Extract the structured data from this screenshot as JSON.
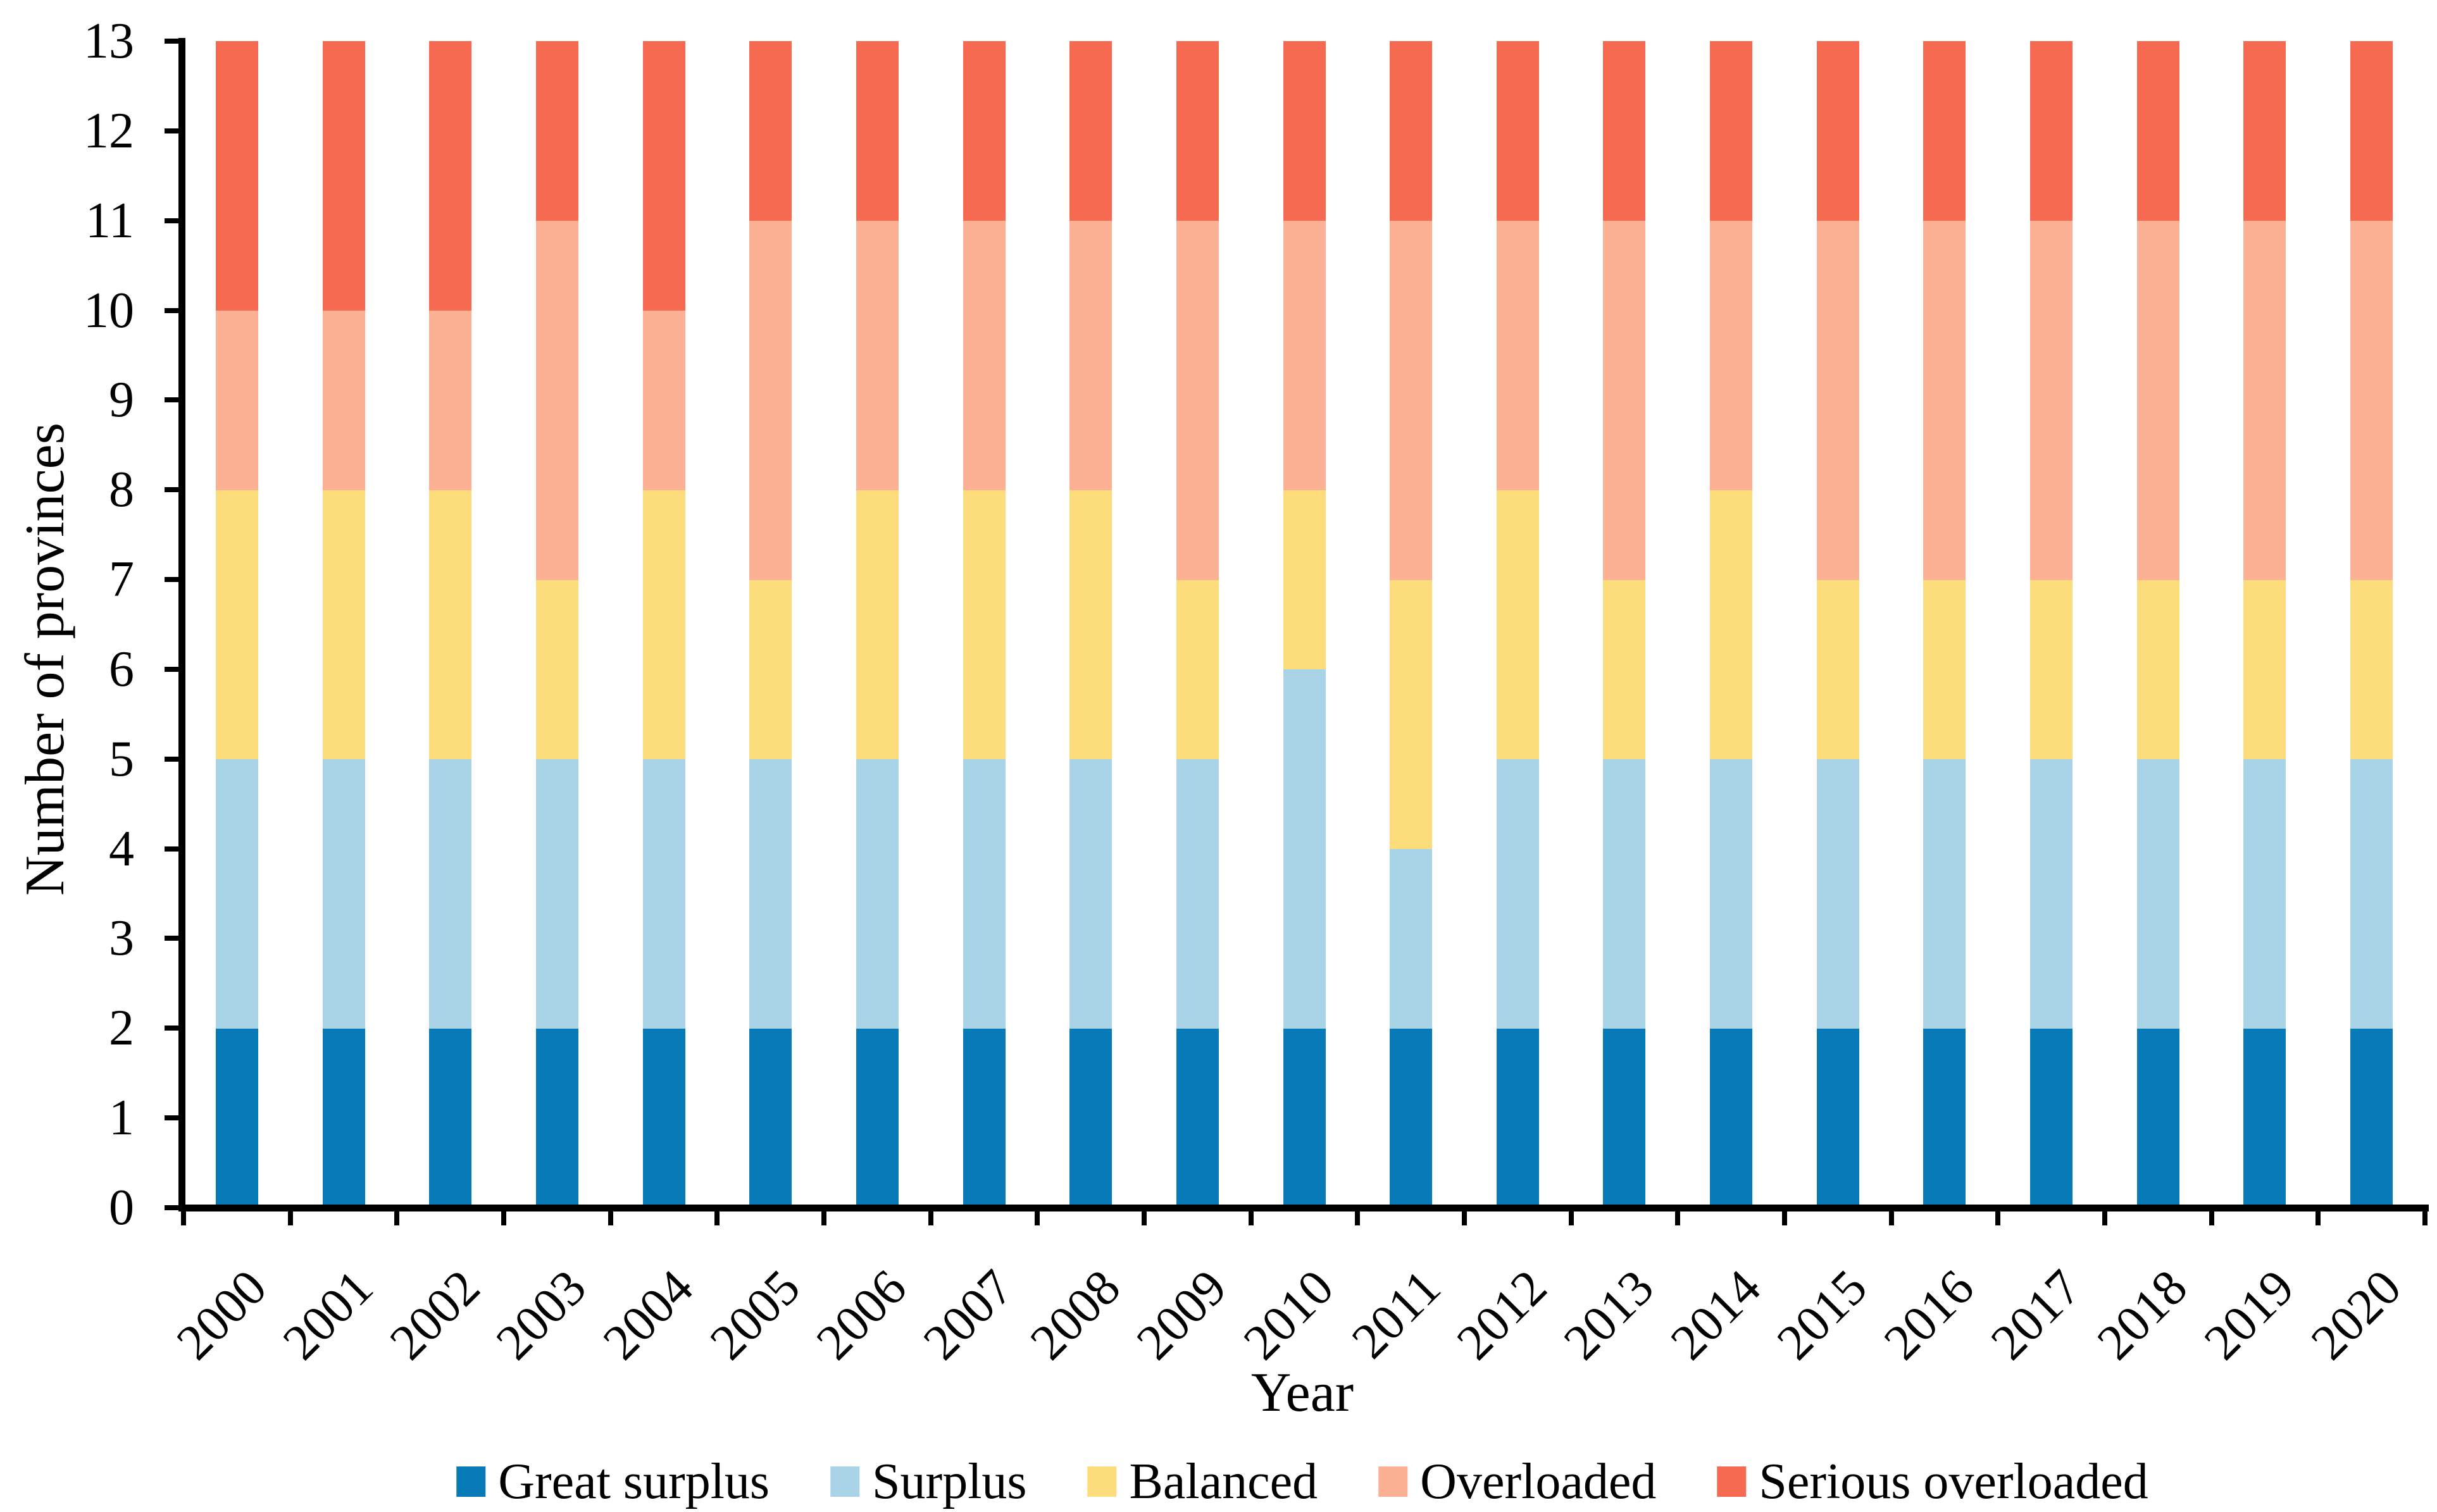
{
  "chart_data": {
    "type": "bar",
    "stacked": true,
    "title": "",
    "xlabel": "Year",
    "ylabel": "Number of provinces",
    "ylim": [
      0,
      13
    ],
    "y_ticks": [
      0,
      1,
      2,
      3,
      4,
      5,
      6,
      7,
      8,
      9,
      10,
      11,
      12,
      13
    ],
    "grid": false,
    "legend_position": "bottom",
    "categories": [
      "2000",
      "2001",
      "2002",
      "2003",
      "2004",
      "2005",
      "2006",
      "2007",
      "2008",
      "2009",
      "2010",
      "2011",
      "2012",
      "2013",
      "2014",
      "2015",
      "2016",
      "2017",
      "2018",
      "2019",
      "2020"
    ],
    "series": [
      {
        "name": "Great surplus",
        "color": "#087AB8",
        "values": [
          2,
          2,
          2,
          2,
          2,
          2,
          2,
          2,
          2,
          2,
          2,
          2,
          2,
          2,
          2,
          2,
          2,
          2,
          2,
          2,
          2
        ]
      },
      {
        "name": "Surplus",
        "color": "#A9D4E8",
        "values": [
          3,
          3,
          3,
          3,
          3,
          3,
          3,
          3,
          3,
          3,
          4,
          2,
          3,
          3,
          3,
          3,
          3,
          3,
          3,
          3,
          3
        ]
      },
      {
        "name": "Balanced",
        "color": "#FDDC7B",
        "values": [
          3,
          3,
          3,
          2,
          3,
          2,
          3,
          3,
          3,
          2,
          2,
          3,
          3,
          2,
          3,
          2,
          2,
          2,
          2,
          2,
          2
        ]
      },
      {
        "name": "Overloaded",
        "color": "#FCB094",
        "values": [
          2,
          2,
          2,
          4,
          2,
          4,
          3,
          3,
          3,
          4,
          3,
          4,
          3,
          4,
          3,
          4,
          4,
          4,
          4,
          4,
          4
        ]
      },
      {
        "name": "Serious overloaded",
        "color": "#F76A52",
        "values": [
          3,
          3,
          3,
          2,
          3,
          2,
          2,
          2,
          2,
          2,
          2,
          2,
          2,
          2,
          2,
          2,
          2,
          2,
          2,
          2,
          2
        ]
      }
    ],
    "total_per_category": 13
  },
  "colors": {
    "axis": "#000000",
    "background": "#FFFFFF",
    "great_surplus": "#087AB8",
    "surplus": "#A9D4E8",
    "balanced": "#FDDC7B",
    "overloaded": "#FCB094",
    "serious_overloaded": "#F76A52"
  },
  "legend": {
    "items": [
      "Great surplus",
      "Surplus",
      "Balanced",
      "Overloaded",
      "Serious overloaded"
    ]
  }
}
